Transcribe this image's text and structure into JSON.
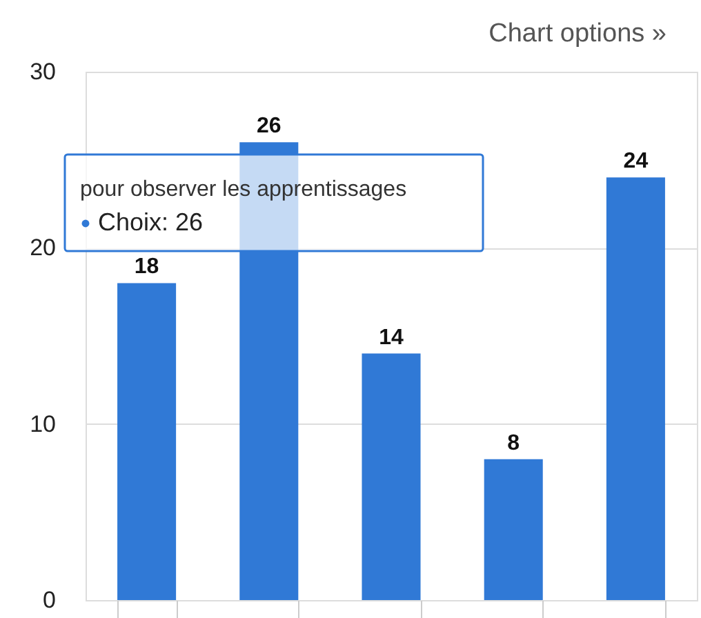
{
  "chart_data": {
    "type": "bar",
    "categories": [
      null,
      null,
      null,
      null,
      null
    ],
    "series": [
      {
        "color": "#3079d6",
        "values": [
          18,
          26,
          14,
          8,
          24
        ]
      }
    ],
    "ylim": [
      0,
      30
    ],
    "yticks": [
      0,
      10,
      20,
      30
    ],
    "grid": "y",
    "tick_labels": "y",
    "data_labels": true,
    "annotations": [
      "Chart options »",
      "pour observer les apprentissages",
      "Choix: 26"
    ]
  }
}
